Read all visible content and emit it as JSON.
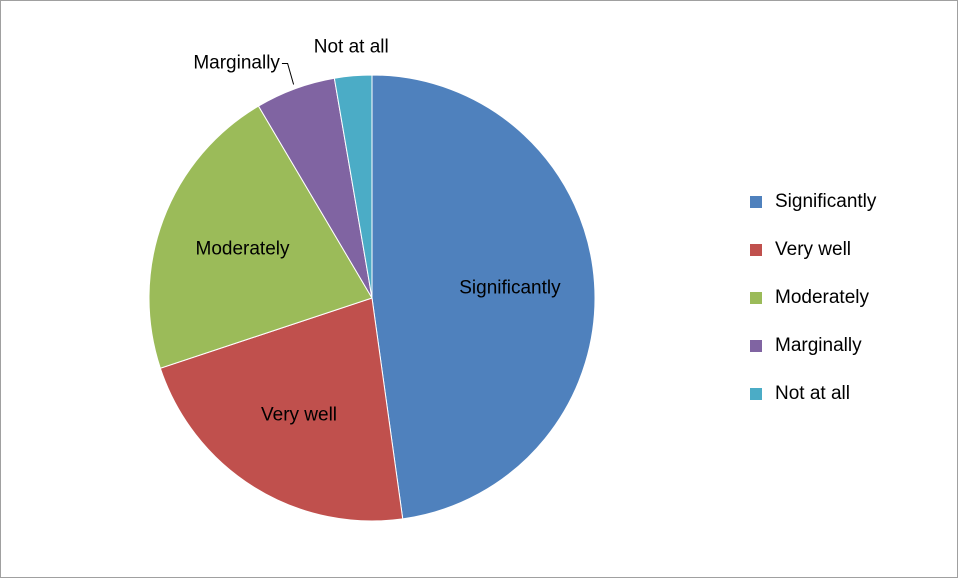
{
  "chart_data": {
    "type": "pie",
    "categories": [
      "Significantly",
      "Very well",
      "Moderately",
      "Marginally",
      "Not at all"
    ],
    "values": [
      47.8,
      22.1,
      21.6,
      5.8,
      2.7
    ],
    "colors": [
      "#4f81bd",
      "#c0504d",
      "#9bbb59",
      "#8064a2",
      "#4bacc6"
    ],
    "legend": "right"
  }
}
